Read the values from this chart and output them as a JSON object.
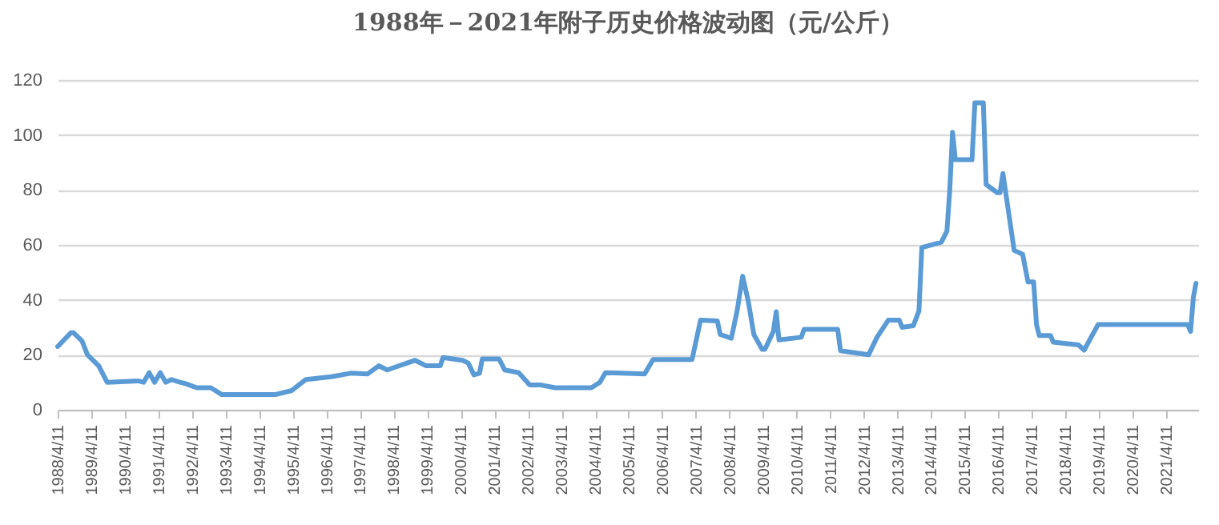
{
  "chart_data": {
    "type": "line",
    "title": "1988年－2021年附子历史价格波动图（元/公斤）",
    "x": [
      "1988-04-11",
      "1988-09",
      "1988-10",
      "1989-01",
      "1989-03",
      "1989-07",
      "1989-10",
      "1990-09",
      "1990-11",
      "1991-01",
      "1991-03",
      "1991-05",
      "1991-07",
      "1991-09",
      "1991-12",
      "1992-02",
      "1992-06",
      "1992-11",
      "1993-03",
      "1994-10",
      "1995-04",
      "1995-09",
      "1996-06",
      "1997-01",
      "1997-07",
      "1997-11",
      "1998-02",
      "1998-12",
      "1999-04",
      "1999-09",
      "1999-10",
      "2000-05",
      "2000-07",
      "2000-09",
      "2000-11",
      "2000-12",
      "2001-06",
      "2001-08",
      "2002-01",
      "2002-05",
      "2002-09",
      "2003-02",
      "2004-03",
      "2004-06",
      "2004-08",
      "2005-10",
      "2006-01",
      "2007-03",
      "2007-06",
      "2007-12",
      "2008-01",
      "2008-05",
      "2008-07",
      "2008-09",
      "2008-11",
      "2009-01",
      "2009-04",
      "2009-05",
      "2009-08",
      "2009-09",
      "2009-10",
      "2010-06",
      "2010-07",
      "2011-07",
      "2011-08",
      "2012-06",
      "2012-09",
      "2013-01",
      "2013-05",
      "2013-06",
      "2013-10",
      "2013-12",
      "2014-01",
      "2014-08",
      "2014-10",
      "2014-11",
      "2014-12",
      "2015-01",
      "2015-07",
      "2015-08",
      "2015-11",
      "2015-12",
      "2016-04",
      "2016-05",
      "2016-06",
      "2016-10",
      "2017-01",
      "2017-03",
      "2017-05",
      "2017-06",
      "2017-07",
      "2017-11",
      "2017-12",
      "2018-09",
      "2018-11",
      "2019-04",
      "2021-12",
      "2022-01",
      "2022-02",
      "2022-03"
    ],
    "series": [
      {
        "color": "#5b9bd5",
        "values": [
          23,
          28,
          28,
          25,
          20,
          16,
          10,
          10.5,
          10,
          13.5,
          10,
          13.5,
          10,
          11,
          10,
          9.5,
          8,
          8,
          5.5,
          5.5,
          7,
          11,
          12,
          13.3,
          13,
          16,
          14.5,
          18,
          16,
          16,
          19,
          18,
          17,
          12.7,
          13.3,
          18.5,
          18.5,
          14.5,
          13.5,
          9,
          9,
          8,
          8,
          10,
          13.5,
          13,
          18.3,
          18.3,
          32.6,
          32.3,
          27.4,
          26,
          35.7,
          48.6,
          39.5,
          27.4,
          22,
          22,
          28.5,
          35.7,
          25.4,
          26.4,
          29.3,
          29.3,
          21.5,
          20,
          26.4,
          32.6,
          32.6,
          30,
          30.6,
          36,
          59,
          61,
          65,
          80,
          101,
          91,
          91,
          111.7,
          111.7,
          82,
          79,
          79,
          86,
          58,
          56.6,
          46.5,
          46.5,
          31,
          27,
          27,
          24.6,
          23.6,
          21.7,
          31,
          31,
          28.5,
          41,
          46
        ]
      }
    ],
    "xlim": [
      "1988-04-11",
      "2022-03-25"
    ],
    "xticks": [
      {
        "value": "1988-04-11",
        "label": "1988/4/11"
      },
      {
        "value": "1989-04-11",
        "label": "1989/4/11"
      },
      {
        "value": "1990-04-11",
        "label": "1990/4/11"
      },
      {
        "value": "1991-04-11",
        "label": "1991/4/11"
      },
      {
        "value": "1992-04-11",
        "label": "1992/4/11"
      },
      {
        "value": "1993-04-11",
        "label": "1993/4/11"
      },
      {
        "value": "1994-04-11",
        "label": "1994/4/11"
      },
      {
        "value": "1995-04-11",
        "label": "1995/4/11"
      },
      {
        "value": "1996-04-11",
        "label": "1996/4/11"
      },
      {
        "value": "1997-04-11",
        "label": "1997/4/11"
      },
      {
        "value": "1998-04-11",
        "label": "1998/4/11"
      },
      {
        "value": "1999-04-11",
        "label": "1999/4/11"
      },
      {
        "value": "2000-04-11",
        "label": "2000/4/11"
      },
      {
        "value": "2001-04-11",
        "label": "2001/4/11"
      },
      {
        "value": "2002-04-11",
        "label": "2002/4/11"
      },
      {
        "value": "2003-04-11",
        "label": "2003/4/11"
      },
      {
        "value": "2004-04-11",
        "label": "2004/4/11"
      },
      {
        "value": "2005-04-11",
        "label": "2005/4/11"
      },
      {
        "value": "2006-04-11",
        "label": "2006/4/11"
      },
      {
        "value": "2007-04-11",
        "label": "2007/4/11"
      },
      {
        "value": "2008-04-11",
        "label": "2008/4/11"
      },
      {
        "value": "2009-04-11",
        "label": "2009/4/11"
      },
      {
        "value": "2010-04-11",
        "label": "2010/4/11"
      },
      {
        "value": "2011-04-11",
        "label": "2011/4/11"
      },
      {
        "value": "2012-04-11",
        "label": "2012/4/11"
      },
      {
        "value": "2013-04-11",
        "label": "2013/4/11"
      },
      {
        "value": "2014-04-11",
        "label": "2014/4/11"
      },
      {
        "value": "2015-04-11",
        "label": "2015/4/11"
      },
      {
        "value": "2016-04-11",
        "label": "2016/4/11"
      },
      {
        "value": "2017-04-11",
        "label": "2017/4/11"
      },
      {
        "value": "2018-04-11",
        "label": "2018/4/11"
      },
      {
        "value": "2019-04-11",
        "label": "2019/4/11"
      },
      {
        "value": "2020-04-11",
        "label": "2020/4/11"
      },
      {
        "value": "2021-04-11",
        "label": "2021/4/11"
      }
    ],
    "ylim": [
      0,
      120
    ],
    "yticks": [
      0,
      20,
      40,
      60,
      80,
      100,
      120
    ],
    "grid": "y",
    "legend": false
  }
}
